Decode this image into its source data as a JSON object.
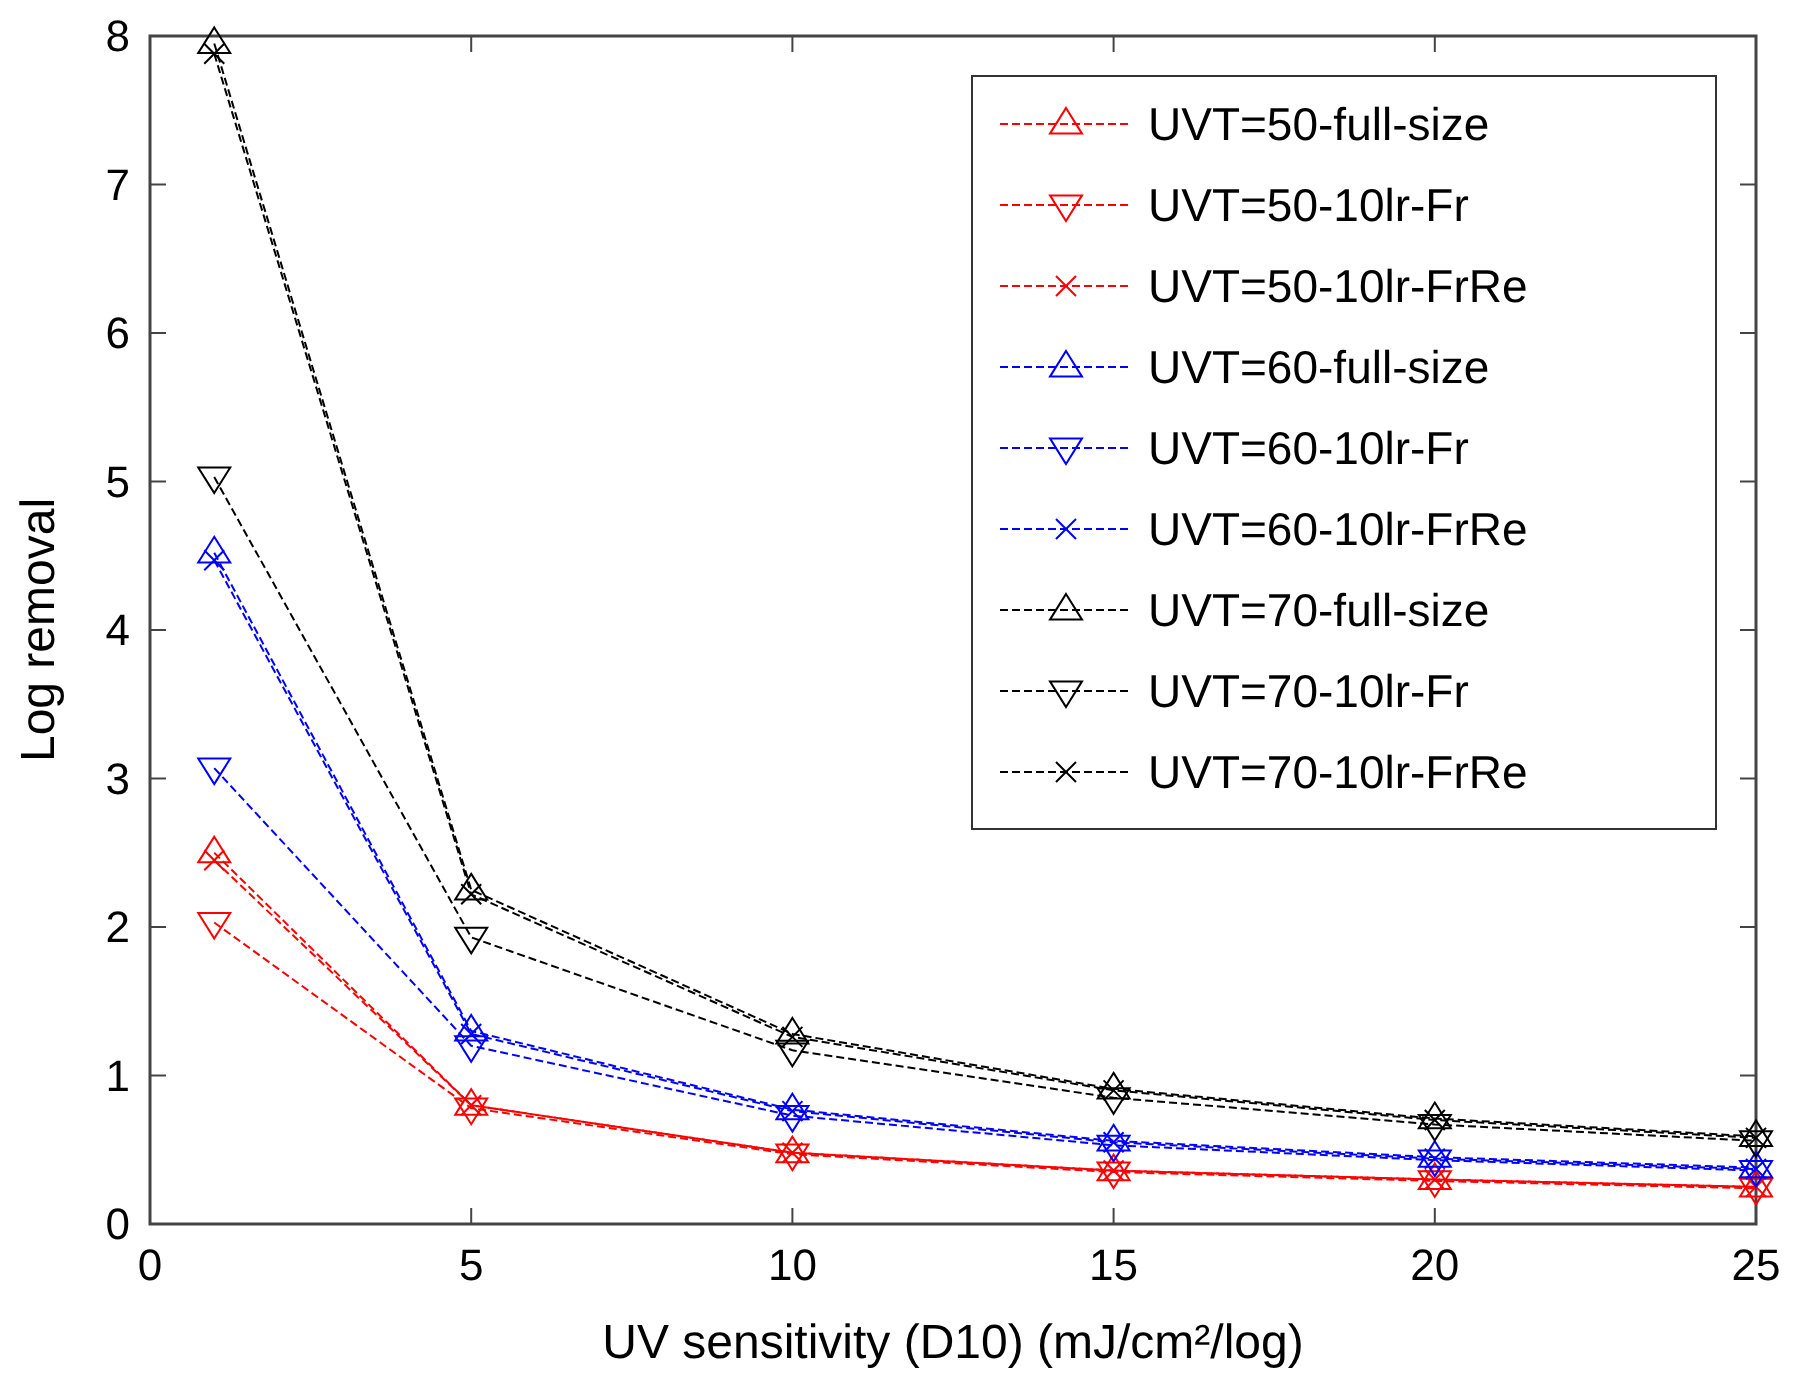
{
  "chart_data": {
    "type": "line",
    "xlabel": "UV sensitivity (D10) (mJ/cm²/log)",
    "ylabel": "Log removal",
    "x": [
      1,
      5,
      10,
      15,
      20,
      25
    ],
    "xlim": [
      0,
      25
    ],
    "xticks": [
      0,
      5,
      10,
      15,
      20,
      25
    ],
    "ylim": [
      0,
      8
    ],
    "yticks": [
      0,
      1,
      2,
      3,
      4,
      5,
      6,
      7,
      8
    ],
    "grid": false,
    "legend": "top right",
    "line_style": "dashed",
    "series": [
      {
        "name": "UVT=50-full-size",
        "color": "#ff0000",
        "marker": "triangle",
        "values": [
          2.5,
          0.8,
          0.48,
          0.36,
          0.3,
          0.25
        ]
      },
      {
        "name": "UVT=50-10lr-Fr",
        "color": "#ff0000",
        "marker": "triangle-down",
        "values": [
          2.03,
          0.78,
          0.47,
          0.35,
          0.29,
          0.24
        ]
      },
      {
        "name": "UVT=50-10lr-FrRe",
        "color": "#ff0000",
        "marker": "cross",
        "values": [
          2.45,
          0.8,
          0.48,
          0.36,
          0.3,
          0.25
        ]
      },
      {
        "name": "UVT=60-full-size",
        "color": "#0000ff",
        "marker": "triangle",
        "values": [
          4.52,
          1.3,
          0.77,
          0.56,
          0.45,
          0.38
        ]
      },
      {
        "name": "UVT=60-10lr-Fr",
        "color": "#0000ff",
        "marker": "triangle-down",
        "values": [
          3.07,
          1.2,
          0.73,
          0.53,
          0.43,
          0.36
        ]
      },
      {
        "name": "UVT=60-10lr-FrRe",
        "color": "#0000ff",
        "marker": "cross",
        "values": [
          4.47,
          1.28,
          0.76,
          0.55,
          0.44,
          0.37
        ]
      },
      {
        "name": "UVT=70-full-size",
        "color": "#000000",
        "marker": "triangle",
        "values": [
          7.95,
          2.25,
          1.28,
          0.91,
          0.71,
          0.59
        ]
      },
      {
        "name": "UVT=70-10lr-Fr",
        "color": "#000000",
        "marker": "triangle-down",
        "values": [
          5.03,
          1.93,
          1.17,
          0.85,
          0.67,
          0.56
        ]
      },
      {
        "name": "UVT=70-10lr-FrRe",
        "color": "#000000",
        "marker": "cross",
        "values": [
          7.88,
          2.22,
          1.26,
          0.9,
          0.7,
          0.58
        ]
      }
    ]
  }
}
